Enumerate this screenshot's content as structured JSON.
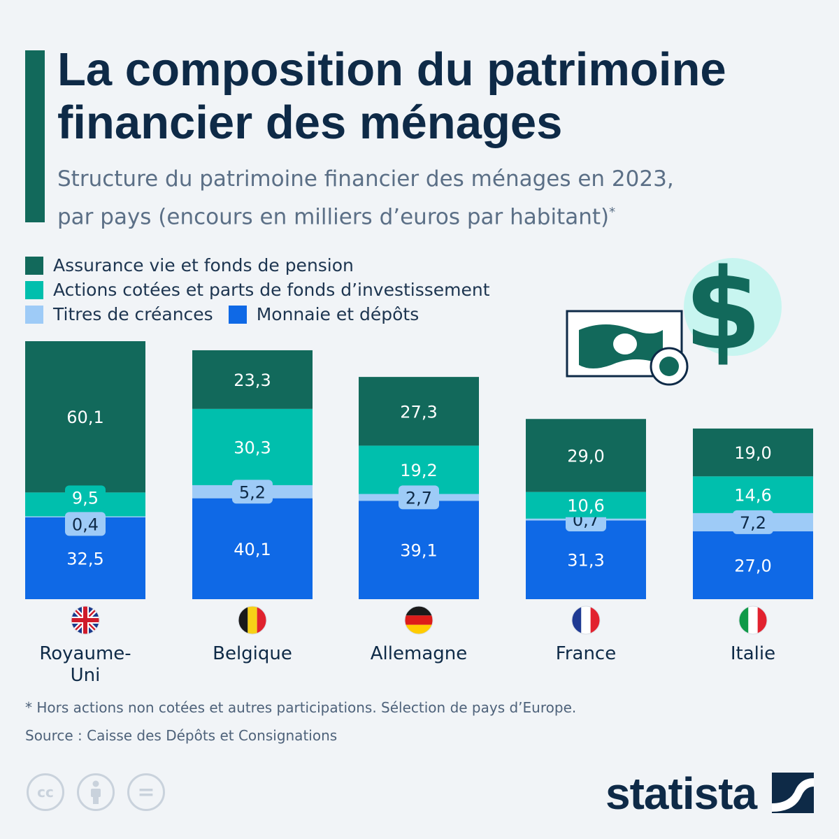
{
  "title": "La composition du patrimoine financier des ménages",
  "subtitle_line1": "Structure du patrimoine financier des ménages en 2023,",
  "subtitle_line2": "par pays (encours en milliers d’euros par habitant)",
  "subtitle_mark": "*",
  "legend": {
    "items": [
      {
        "label": "Assurance vie et fonds de pension",
        "color": "#12695b"
      },
      {
        "label": "Actions cotées et parts de fonds d’investissement",
        "color": "#00bfad"
      },
      {
        "label": "Titres de créances",
        "color": "#9ecbf7"
      },
      {
        "label": "Monnaie et dépôts",
        "color": "#0f69e6"
      }
    ]
  },
  "chart_data": {
    "type": "bar",
    "stacked": true,
    "categories": [
      "Royaume-Uni",
      "Belgique",
      "Allemagne",
      "France",
      "Italie"
    ],
    "category_lines": [
      [
        "Royaume-",
        "Uni"
      ],
      [
        "Belgique"
      ],
      [
        "Allemagne"
      ],
      [
        "France"
      ],
      [
        "Italie"
      ]
    ],
    "series": [
      {
        "name": "Monnaie et dépôts",
        "color": "#0f69e6",
        "values": [
          32.5,
          40.1,
          39.1,
          31.3,
          27.0
        ],
        "labels": [
          "32,5",
          "40,1",
          "39,1",
          "31,3",
          "27,0"
        ]
      },
      {
        "name": "Titres de créances",
        "color": "#9ecbf7",
        "values": [
          0.4,
          5.2,
          2.7,
          0.7,
          7.2
        ],
        "labels": [
          "0,4",
          "5,2",
          "2,7",
          "0,7",
          "7,2"
        ]
      },
      {
        "name": "Actions cotées et parts de fonds d’investissement",
        "color": "#00bfad",
        "values": [
          9.5,
          30.3,
          19.2,
          10.6,
          14.6
        ],
        "labels": [
          "9,5",
          "30,3",
          "19,2",
          "10,6",
          "14,6"
        ]
      },
      {
        "name": "Assurance vie et fonds de pension",
        "color": "#12695b",
        "values": [
          60.1,
          23.3,
          27.3,
          29.0,
          19.0
        ],
        "labels": [
          "60,1",
          "23,3",
          "27,3",
          "29,0",
          "19,0"
        ]
      }
    ],
    "flags": [
      "uk-flag-icon",
      "belgium-flag-icon",
      "germany-flag-icon",
      "france-flag-icon",
      "italy-flag-icon"
    ],
    "legend_position": "top-left",
    "grid": false
  },
  "footnote": "* Hors actions non cotées et autres participations. Sélection de pays d’Europe.",
  "source": "Source : Caisse des Dépôts et Consignations",
  "brand": "statista",
  "license_icons": [
    "cc-icon",
    "attribution-icon",
    "no-derivatives-icon"
  ],
  "license_glyphs": [
    "cc",
    "",
    "="
  ]
}
